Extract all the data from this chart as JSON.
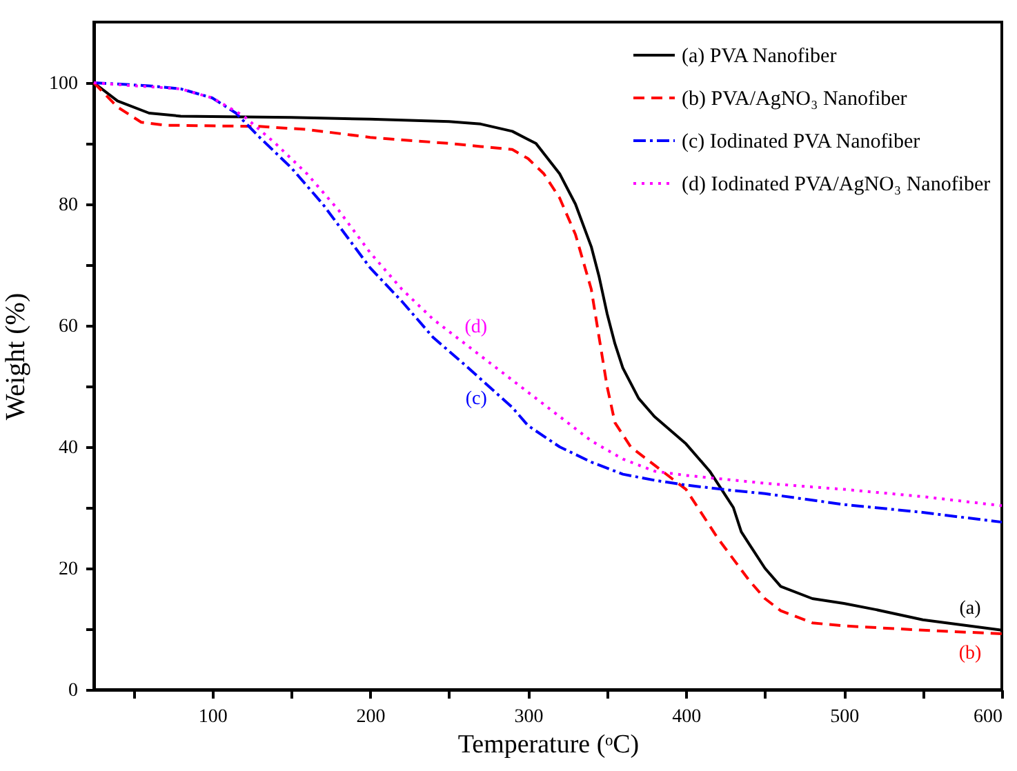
{
  "chart_data": {
    "type": "line",
    "xlabel": "Temperature (ᵒC)",
    "ylabel": "Weight (%)",
    "xlim": [
      25,
      600
    ],
    "ylim": [
      0,
      110
    ],
    "xticks": [
      {
        "value": 50,
        "label": null
      },
      100,
      {
        "value": 150,
        "label": null
      },
      200,
      {
        "value": 250,
        "label": null
      },
      300,
      {
        "value": 350,
        "label": null
      },
      400,
      {
        "value": 450,
        "label": null
      },
      500,
      {
        "value": 550,
        "label": null
      },
      600
    ],
    "yticks": [
      0,
      {
        "value": 10,
        "label": null
      },
      20,
      {
        "value": 30,
        "label": null
      },
      40,
      {
        "value": 50,
        "label": null
      },
      60,
      {
        "value": 70,
        "label": null
      },
      80,
      {
        "value": 90,
        "label": null
      },
      100
    ],
    "grid": false,
    "legend": "top right",
    "series": [
      {
        "name": "(a) PVA Nanofiber",
        "color": "#000000",
        "line_style": "solid",
        "x": [
          25,
          40,
          60,
          80,
          150,
          200,
          250,
          270,
          290,
          305,
          320,
          330,
          340,
          345,
          350,
          355,
          360,
          370,
          380,
          400,
          415,
          425,
          430,
          435,
          440,
          450,
          460,
          480,
          500,
          520,
          550,
          600
        ],
        "values": [
          100,
          97,
          95,
          94.5,
          94.3,
          94,
          93.6,
          93.2,
          92,
          90,
          85,
          80,
          73,
          68,
          62,
          57,
          53,
          48,
          45,
          40.5,
          36,
          32,
          30,
          26,
          24,
          20,
          17,
          15,
          14.2,
          13.2,
          11.5,
          9.8
        ]
      },
      {
        "name": "(b) PVA/AgNO₃ Nanofiber",
        "color": "#ff0000",
        "line_style": "dashed",
        "x": [
          25,
          40,
          55,
          70,
          130,
          160,
          200,
          250,
          270,
          290,
          300,
          310,
          320,
          330,
          340,
          345,
          350,
          355,
          365,
          380,
          400,
          420,
          440,
          450,
          460,
          480,
          500,
          550,
          600
        ],
        "values": [
          100,
          96,
          93.5,
          93,
          92.8,
          92.3,
          91,
          90,
          89.5,
          89,
          87.5,
          85,
          81,
          75,
          66,
          58,
          50,
          44,
          40,
          37,
          33,
          25,
          18,
          15,
          13,
          11,
          10.5,
          9.8,
          9.2
        ]
      },
      {
        "name": "(c) Iodinated PVA Nanofiber",
        "color": "#0000ff",
        "line_style": "dashdot",
        "x": [
          25,
          60,
          80,
          100,
          115,
          130,
          150,
          170,
          190,
          200,
          220,
          240,
          260,
          275,
          290,
          300,
          320,
          340,
          360,
          380,
          400,
          430,
          450,
          500,
          550,
          600
        ],
        "values": [
          100,
          99.5,
          99,
          97.5,
          95,
          91,
          86,
          80,
          73,
          69.5,
          64,
          58,
          53.5,
          50,
          46.5,
          43.5,
          40,
          37.5,
          35.5,
          34.5,
          33.7,
          32.8,
          32.3,
          30.5,
          29.2,
          27.6
        ]
      },
      {
        "name": "(d) Iodinated PVA/AgNO₃ Nanofiber",
        "color": "#ff00ff",
        "line_style": "dotted",
        "x": [
          25,
          50,
          80,
          100,
          120,
          140,
          160,
          180,
          200,
          220,
          240,
          260,
          280,
          300,
          320,
          340,
          360,
          380,
          400,
          450,
          500,
          550,
          600
        ],
        "values": [
          100,
          99.5,
          99,
          97.5,
          94.5,
          90,
          85,
          79,
          72,
          66,
          61,
          57,
          53,
          49,
          45,
          41,
          38,
          36,
          35.3,
          34,
          33,
          31.8,
          30.3
        ]
      }
    ],
    "annotations": [
      {
        "text": "(a)",
        "x": 600,
        "y": 9.8
      },
      {
        "text": "(b)",
        "x": 600,
        "y": 9.2
      },
      {
        "text": "(c)",
        "x": 275,
        "y": 50
      },
      {
        "text": "(d)",
        "x": 260,
        "y": 57
      }
    ]
  }
}
